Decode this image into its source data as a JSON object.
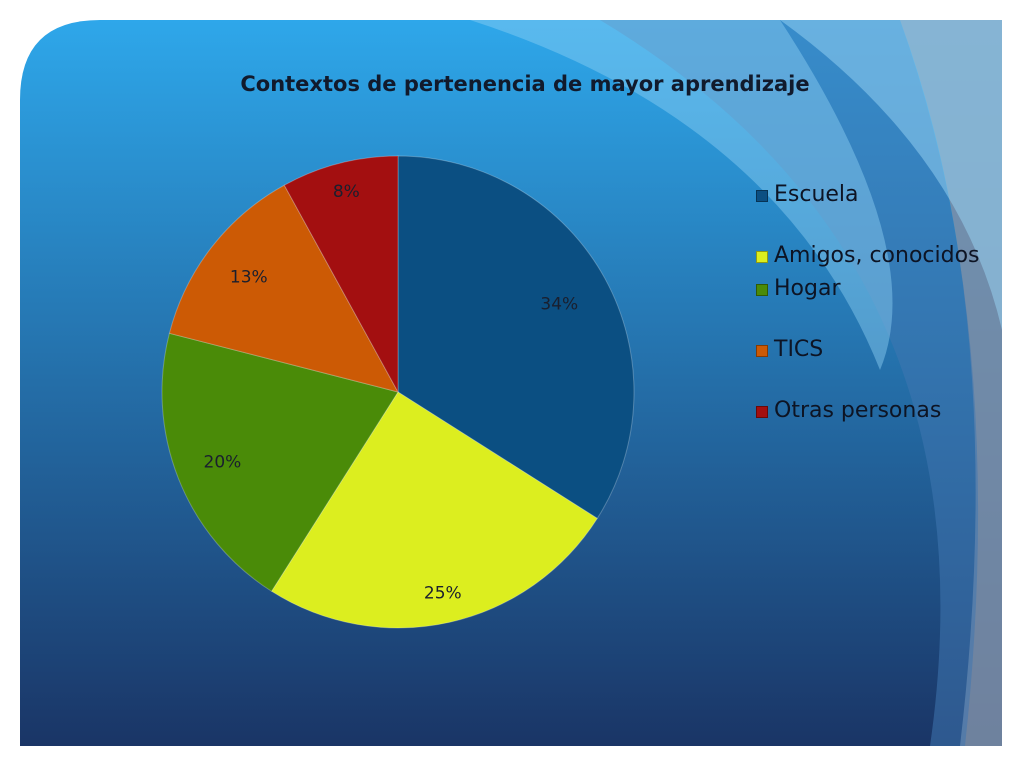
{
  "colors": {
    "background_top": "#2ea7ea",
    "background_bottom": "#1a3566",
    "wave_light": "#8fd0f3",
    "wave_mid": "#5bb8ee",
    "wave_outer": "#7e8fa8"
  },
  "chart_data": {
    "type": "pie",
    "title": "Contextos de pertenencia de mayor aprendizaje",
    "legend_position": "right",
    "series": [
      {
        "name": "Escuela",
        "value": 34,
        "label": "34%",
        "color": "#0b4f82"
      },
      {
        "name": "Amigos, conocidos",
        "value": 25,
        "label": "25%",
        "color": "#dcee1f"
      },
      {
        "name": "Hogar",
        "value": 20,
        "label": "20%",
        "color": "#4a8b08"
      },
      {
        "name": "TICS",
        "value": 13,
        "label": "13%",
        "color": "#cc5a05"
      },
      {
        "name": "Otras personas",
        "value": 8,
        "label": "8%",
        "color": "#a30f10"
      }
    ]
  }
}
